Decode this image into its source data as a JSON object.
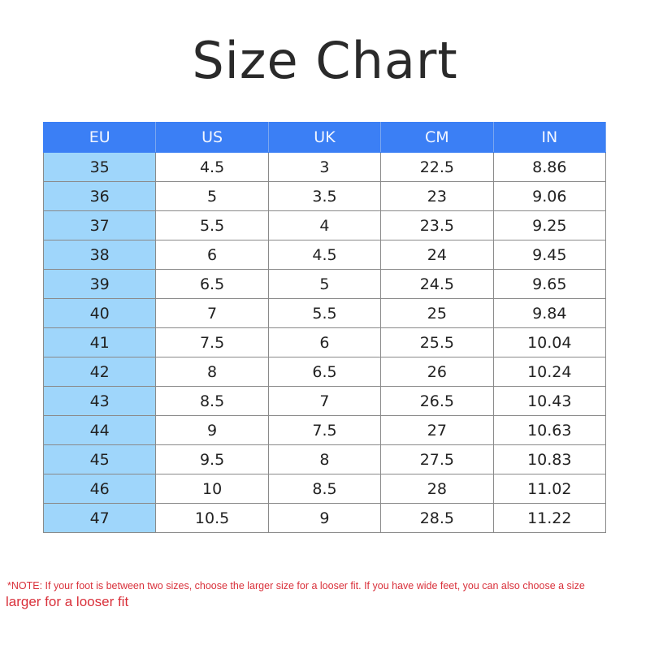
{
  "title": "Size Chart",
  "table": {
    "headers": [
      "EU",
      "US",
      "UK",
      "CM",
      "IN"
    ],
    "rows": [
      [
        "35",
        "4.5",
        "3",
        "22.5",
        "8.86"
      ],
      [
        "36",
        "5",
        "3.5",
        "23",
        "9.06"
      ],
      [
        "37",
        "5.5",
        "4",
        "23.5",
        "9.25"
      ],
      [
        "38",
        "6",
        "4.5",
        "24",
        "9.45"
      ],
      [
        "39",
        "6.5",
        "5",
        "24.5",
        "9.65"
      ],
      [
        "40",
        "7",
        "5.5",
        "25",
        "9.84"
      ],
      [
        "41",
        "7.5",
        "6",
        "25.5",
        "10.04"
      ],
      [
        "42",
        "8",
        "6.5",
        "26",
        "10.24"
      ],
      [
        "43",
        "8.5",
        "7",
        "26.5",
        "10.43"
      ],
      [
        "44",
        "9",
        "7.5",
        "27",
        "10.63"
      ],
      [
        "45",
        "9.5",
        "8",
        "27.5",
        "10.83"
      ],
      [
        "46",
        "10",
        "8.5",
        "28",
        "11.02"
      ],
      [
        "47",
        "10.5",
        "9",
        "28.5",
        "11.22"
      ]
    ]
  },
  "note": {
    "line1": "*NOTE: If your foot is between two sizes, choose the larger size for a looser fit. If you have wide feet, you can also choose a size",
    "line2": "larger for a looser fit"
  },
  "colors": {
    "header": "#3b7ff5",
    "eu_column": "#9fd6fb",
    "note": "#d9303a"
  }
}
